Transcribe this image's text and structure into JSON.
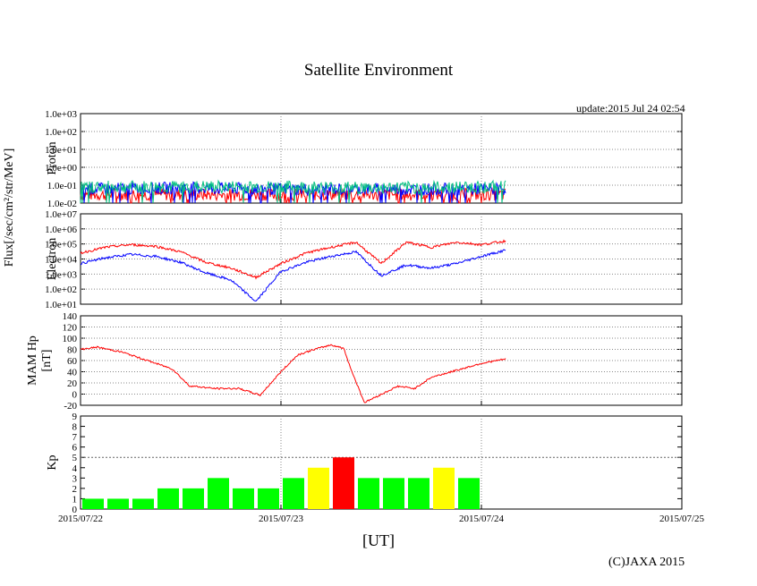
{
  "title": "Satellite Environment",
  "update": "update:2015 Jul 24 02:54",
  "copyright": "(C)JAXA 2015",
  "x_axis_label": "[UT]",
  "x_ticks": [
    "2015/07/22",
    "2015/07/23",
    "2015/07/24",
    "2015/07/25"
  ],
  "shared_ylabel": "Flux[/sec/cm²/str/MeV]",
  "colors": {
    "red": "#ff0000",
    "blue": "#0000ff",
    "green": "#00c080",
    "kp_green": "#00ff00",
    "kp_yellow": "#ffff00",
    "kp_red": "#ff0000"
  },
  "chart_data": [
    {
      "type": "line",
      "panel": "Proton",
      "ylabel": "Proton",
      "yscale": "log",
      "ylim": [
        0.01,
        1000
      ],
      "y_ticks": [
        "1.0e-02",
        "1.0e-01",
        "1.0e+00",
        "1.0e+01",
        "1.0e+02",
        "1.0e+03"
      ],
      "xlim": [
        "2015/07/22 00:00",
        "2015/07/25 00:00"
      ],
      "grid": true,
      "series": [
        {
          "color": "red",
          "x": [
            "07/22 00:00",
            "07/22 12:00",
            "07/23 00:00",
            "07/23 12:00",
            "07/24 00:00",
            "07/24 03:00"
          ],
          "values": [
            0.03,
            0.03,
            0.03,
            0.03,
            0.03,
            0.03
          ]
        },
        {
          "color": "blue",
          "x": [
            "07/22 00:00",
            "07/22 12:00",
            "07/23 00:00",
            "07/23 12:00",
            "07/24 00:00",
            "07/24 03:00"
          ],
          "values": [
            0.06,
            0.07,
            0.06,
            0.06,
            0.06,
            0.06
          ]
        },
        {
          "color": "green",
          "x": [
            "07/22 00:00",
            "07/22 12:00",
            "07/23 00:00",
            "07/23 12:00",
            "07/24 00:00",
            "07/24 03:00"
          ],
          "values": [
            0.08,
            0.08,
            0.08,
            0.07,
            0.08,
            0.08
          ]
        }
      ]
    },
    {
      "type": "line",
      "panel": "Electron",
      "ylabel": "Electron",
      "yscale": "log",
      "ylim": [
        10,
        10000000
      ],
      "y_ticks": [
        "1.0e+01",
        "1.0e+02",
        "1.0e+03",
        "1.0e+04",
        "1.0e+05",
        "1.0e+06",
        "1.0e+07"
      ],
      "xlim": [
        "2015/07/22 00:00",
        "2015/07/25 00:00"
      ],
      "grid": true,
      "series": [
        {
          "color": "red",
          "x": [
            "07/22 00:00",
            "07/22 03:00",
            "07/22 06:00",
            "07/22 09:00",
            "07/22 12:00",
            "07/22 15:00",
            "07/22 18:00",
            "07/22 21:00",
            "07/23 00:00",
            "07/23 03:00",
            "07/23 06:00",
            "07/23 09:00",
            "07/23 12:00",
            "07/23 15:00",
            "07/23 18:00",
            "07/23 21:00",
            "07/24 00:00",
            "07/24 03:00"
          ],
          "values": [
            25000,
            60000,
            90000,
            70000,
            30000,
            6000,
            2500,
            600,
            5000,
            25000,
            60000,
            130000,
            5000,
            130000,
            60000,
            130000,
            90000,
            160000
          ]
        },
        {
          "color": "blue",
          "x": [
            "07/22 00:00",
            "07/22 03:00",
            "07/22 06:00",
            "07/22 09:00",
            "07/22 12:00",
            "07/22 15:00",
            "07/22 18:00",
            "07/22 21:00",
            "07/23 00:00",
            "07/23 03:00",
            "07/23 06:00",
            "07/23 09:00",
            "07/23 12:00",
            "07/23 15:00",
            "07/23 18:00",
            "07/23 21:00",
            "07/24 00:00",
            "07/24 03:00"
          ],
          "values": [
            5000,
            12000,
            20000,
            15000,
            6000,
            1200,
            400,
            15,
            1500,
            6000,
            15000,
            30000,
            800,
            4000,
            2500,
            5000,
            15000,
            40000
          ]
        }
      ]
    },
    {
      "type": "line",
      "panel": "MAM Hp",
      "ylabel": "MAM Hp\n[nT]",
      "ylim": [
        -20,
        140
      ],
      "y_ticks": [
        "-20",
        "0",
        "20",
        "40",
        "60",
        "80",
        "100",
        "120",
        "140"
      ],
      "xlim": [
        "2015/07/22 00:00",
        "2015/07/25 00:00"
      ],
      "grid": true,
      "series": [
        {
          "color": "red",
          "x": [
            "07/22 00:00",
            "07/22 02:00",
            "07/22 05:00",
            "07/22 08:00",
            "07/22 11:00",
            "07/22 13:00",
            "07/22 16:00",
            "07/22 19:00",
            "07/22 21:30",
            "07/23 00:00",
            "07/23 02:00",
            "07/23 04:00",
            "07/23 06:00",
            "07/23 07:30",
            "07/23 08:30",
            "07/23 10:00",
            "07/23 14:00",
            "07/23 16:00",
            "07/23 18:00",
            "07/24 00:00",
            "07/24 03:00"
          ],
          "values": [
            80,
            84,
            75,
            60,
            45,
            15,
            10,
            10,
            -2,
            40,
            70,
            80,
            88,
            82,
            40,
            -15,
            14,
            10,
            30,
            55,
            63
          ]
        }
      ]
    },
    {
      "type": "bar",
      "panel": "Kp",
      "ylabel": "Kp",
      "ylim": [
        0,
        9
      ],
      "y_ticks": [
        "0",
        "1",
        "2",
        "3",
        "4",
        "5",
        "6",
        "7",
        "8",
        "9"
      ],
      "xlim": [
        "2015/07/22 00:00",
        "2015/07/25 00:00"
      ],
      "threshold_line": 5,
      "categories": [
        "07/22 00-03",
        "07/22 03-06",
        "07/22 06-09",
        "07/22 09-12",
        "07/22 12-15",
        "07/22 15-18",
        "07/22 18-21",
        "07/22 21-24",
        "07/23 00-03",
        "07/23 03-06",
        "07/23 06-09",
        "07/23 09-12",
        "07/23 12-15",
        "07/23 15-18",
        "07/23 18-21",
        "07/23 21-24"
      ],
      "values": [
        1,
        1,
        1,
        2,
        2,
        3,
        2,
        2,
        3,
        4,
        5,
        3,
        3,
        3,
        4,
        3
      ],
      "colors": [
        "green",
        "green",
        "green",
        "green",
        "green",
        "green",
        "green",
        "green",
        "green",
        "yellow",
        "red",
        "green",
        "green",
        "green",
        "yellow",
        "green"
      ]
    }
  ]
}
